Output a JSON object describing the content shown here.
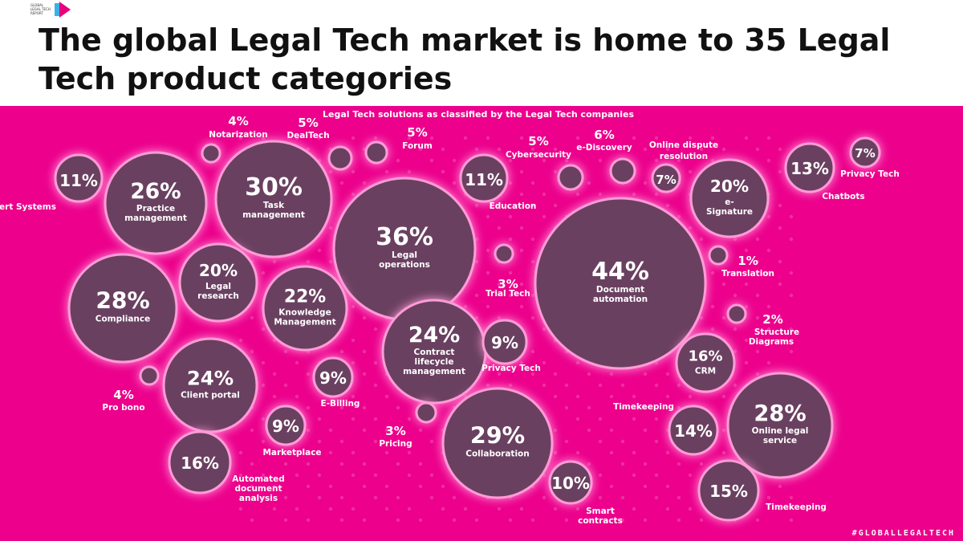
{
  "logo": {
    "text": "GLOBAL LEGAL TECH REPORT"
  },
  "title": "The global Legal Tech market is home to 35 Legal Tech product categories",
  "hashtag": "#GLOBALLEGALTECH",
  "colors": {
    "background": "#ec008c",
    "bubble": "#6a4060",
    "bubble_outline": "#ff9bd8",
    "text": "#ffffff"
  },
  "chart_data": {
    "type": "bubble",
    "title": "Legal Tech solutions as classified by the Legal Tech companies",
    "unit": "%",
    "points": [
      {
        "label": "Expert Systems",
        "value": 11
      },
      {
        "label": "Practice management",
        "value": 26
      },
      {
        "label": "Notarization",
        "value": 4
      },
      {
        "label": "DealTech",
        "value": 5
      },
      {
        "label": "Task management",
        "value": 30
      },
      {
        "label": "Forum",
        "value": 5
      },
      {
        "label": "Legal operations",
        "value": 36
      },
      {
        "label": "Education",
        "value": 11
      },
      {
        "label": "Cybersecurity",
        "value": 5
      },
      {
        "label": "e-Discovery",
        "value": 6
      },
      {
        "label": "Online dispute resolution",
        "value": 7
      },
      {
        "label": "e-Signature",
        "value": 20
      },
      {
        "label": "Chatbots",
        "value": 13
      },
      {
        "label": "Privacy Tech",
        "value": 7
      },
      {
        "label": "Compliance",
        "value": 28
      },
      {
        "label": "Legal research",
        "value": 20
      },
      {
        "label": "Knowledge Management",
        "value": 22
      },
      {
        "label": "Trial Tech",
        "value": 3
      },
      {
        "label": "Document automation",
        "value": 44
      },
      {
        "label": "Translation",
        "value": 1
      },
      {
        "label": "Structure Diagrams",
        "value": 2
      },
      {
        "label": "Contract lifecycle management",
        "value": 24
      },
      {
        "label": "Privacy Tech",
        "value": 9
      },
      {
        "label": "CRM",
        "value": 16
      },
      {
        "label": "Client portal",
        "value": 24
      },
      {
        "label": "E-Billing",
        "value": 9
      },
      {
        "label": "Pro bono",
        "value": 4
      },
      {
        "label": "Marketplace",
        "value": 9
      },
      {
        "label": "Pricing",
        "value": 3
      },
      {
        "label": "Collaboration",
        "value": 29
      },
      {
        "label": "Timekeeping",
        "value": 14
      },
      {
        "label": "Online legal service",
        "value": 28
      },
      {
        "label": "Automated document analysis",
        "value": 16
      },
      {
        "label": "Smart contracts",
        "value": 10
      },
      {
        "label": "Timekeeping",
        "value": 15
      }
    ]
  }
}
